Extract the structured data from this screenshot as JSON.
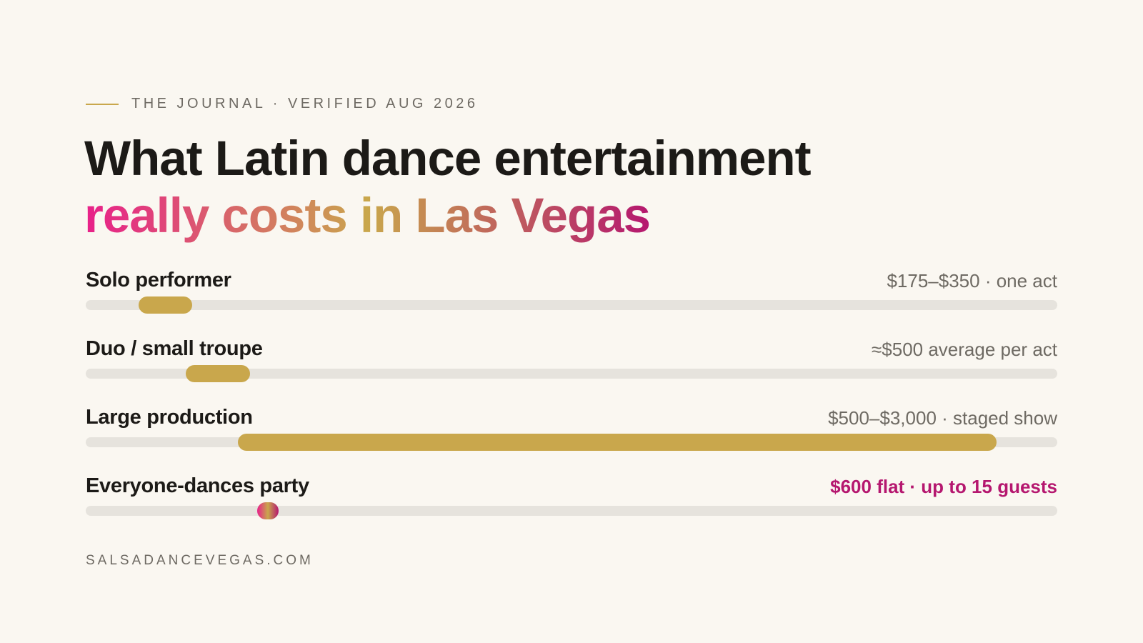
{
  "eyebrow": "THE JOURNAL · VERIFIED AUG 2026",
  "headline": {
    "line1": "What Latin dance entertainment",
    "line2": "really costs in Las Vegas"
  },
  "footer": "SALSADANCEVEGAS.COM",
  "colors": {
    "background": "#faf7f1",
    "text": "#1c1a17",
    "muted": "#6e6a63",
    "track": "#e6e3dd",
    "bar": "#c9a74c",
    "accent_magenta": "#b5176f",
    "gradient": [
      "#e8208a",
      "#c9a74c",
      "#b5176f"
    ]
  },
  "chart_data": {
    "type": "bar",
    "subtype": "range",
    "x_domain_estimate": [
      0,
      3200
    ],
    "rows": [
      {
        "label": "Solo performer",
        "value_text": "$175–$350 · one act",
        "range": [
          175,
          350
        ],
        "highlight": false
      },
      {
        "label": "Duo / small troupe",
        "value_text": "≈$500 average per act",
        "range": [
          330,
          540
        ],
        "highlight": false
      },
      {
        "label": "Large production",
        "value_text": "$500–$3,000 · staged show",
        "range": [
          500,
          3000
        ],
        "highlight": false
      },
      {
        "label": "Everyone-dances party",
        "value_text": "$600 flat · up to 15 guests",
        "range": [
          600,
          600
        ],
        "highlight": true
      }
    ]
  }
}
